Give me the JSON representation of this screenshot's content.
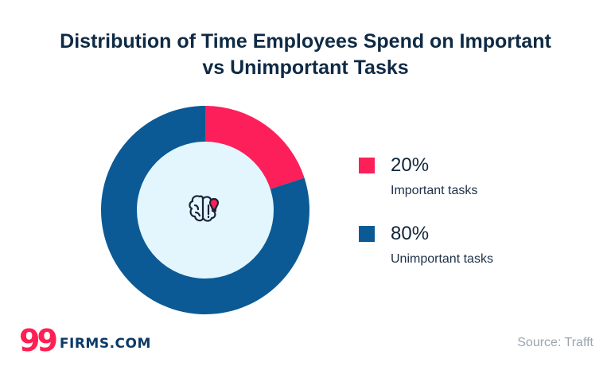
{
  "header": {
    "title_line1": "Distribution of Time Employees Spend on Important",
    "title_line2": "vs Unimportant Tasks"
  },
  "chart_data": {
    "type": "pie",
    "title": "Distribution of Time Employees Spend on Important vs Unimportant Tasks",
    "donut": true,
    "legend_position": "right",
    "center_icon": "brain-with-lightbulb-icon",
    "categories": [
      "Important tasks",
      "Unimportant tasks"
    ],
    "values": [
      20,
      80
    ],
    "value_labels": [
      "20%",
      "80%"
    ],
    "colors": [
      "#fd1f5a",
      "#0b5a95"
    ],
    "center_fill": "#e3f6fd"
  },
  "legend": {
    "items": [
      {
        "pct": "20%",
        "label": "Important tasks",
        "color": "#fd1f5a"
      },
      {
        "pct": "80%",
        "label": "Unimportant tasks",
        "color": "#0b5a95"
      }
    ]
  },
  "footer": {
    "brand_mark": "99",
    "brand_name": "FIRMS.COM",
    "source": "Source: Trafft"
  },
  "colors": {
    "title": "#0f2a44",
    "brand_red": "#ff1f53",
    "brand_blue": "#0d3a66",
    "source_gray": "#9aa5b1"
  }
}
